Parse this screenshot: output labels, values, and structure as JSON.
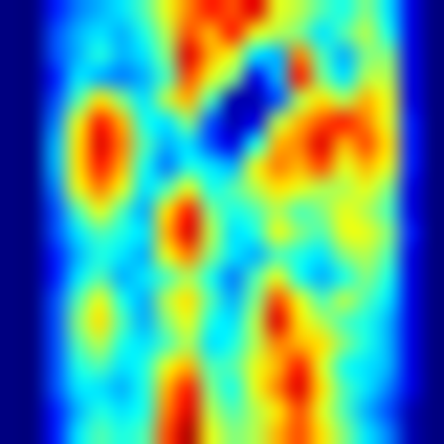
{
  "chart_data": {
    "type": "heatmap",
    "tick_labels": false,
    "color_range": [
      0,
      1
    ],
    "cells": [
      [
        0,
        0,
        0.15,
        0.25,
        0.3,
        0.35,
        0.45,
        0.6,
        0.75,
        0.85,
        0.8,
        0.9,
        0.6,
        0.55,
        0.45,
        0.4,
        0.5,
        0.35,
        0.1,
        0
      ],
      [
        0,
        0,
        0.2,
        0.3,
        0.35,
        0.3,
        0.4,
        0.55,
        0.8,
        0.7,
        0.85,
        0.6,
        0.55,
        0.5,
        0.35,
        0.45,
        0.55,
        0.4,
        0.1,
        0
      ],
      [
        0,
        0,
        0.2,
        0.3,
        0.4,
        0.3,
        0.35,
        0.5,
        0.9,
        0.7,
        0.6,
        0.35,
        0.3,
        0.75,
        0.45,
        0.3,
        0.5,
        0.5,
        0.1,
        0
      ],
      [
        0,
        0,
        0.15,
        0.35,
        0.3,
        0.25,
        0.3,
        0.45,
        0.8,
        0.6,
        0.5,
        0.1,
        0.3,
        0.85,
        0.5,
        0.35,
        0.55,
        0.55,
        0.1,
        0
      ],
      [
        0,
        0,
        0.2,
        0.45,
        0.65,
        0.5,
        0.35,
        0.55,
        0.7,
        0.45,
        0.05,
        0.05,
        0.2,
        0.55,
        0.65,
        0.55,
        0.7,
        0.6,
        0.1,
        0
      ],
      [
        0,
        0,
        0.25,
        0.6,
        0.85,
        0.7,
        0.4,
        0.35,
        0.5,
        0.2,
        0.05,
        0.1,
        0.55,
        0.7,
        0.8,
        0.85,
        0.75,
        0.6,
        0.15,
        0
      ],
      [
        0,
        0,
        0.3,
        0.65,
        0.9,
        0.75,
        0.45,
        0.3,
        0.35,
        0.2,
        0.1,
        0.4,
        0.7,
        0.75,
        0.9,
        0.7,
        0.8,
        0.65,
        0.15,
        0
      ],
      [
        0,
        0,
        0.3,
        0.65,
        0.85,
        0.7,
        0.4,
        0.25,
        0.4,
        0.35,
        0.3,
        0.6,
        0.75,
        0.7,
        0.8,
        0.6,
        0.7,
        0.6,
        0.15,
        0
      ],
      [
        0,
        0,
        0.25,
        0.6,
        0.75,
        0.6,
        0.35,
        0.45,
        0.6,
        0.4,
        0.45,
        0.55,
        0.65,
        0.6,
        0.55,
        0.55,
        0.6,
        0.5,
        0.1,
        0
      ],
      [
        0,
        0,
        0.2,
        0.45,
        0.6,
        0.45,
        0.3,
        0.65,
        0.85,
        0.5,
        0.4,
        0.45,
        0.55,
        0.45,
        0.5,
        0.6,
        0.55,
        0.45,
        0.1,
        0
      ],
      [
        0,
        0,
        0.2,
        0.35,
        0.45,
        0.4,
        0.35,
        0.7,
        0.9,
        0.55,
        0.35,
        0.4,
        0.6,
        0.5,
        0.45,
        0.6,
        0.6,
        0.5,
        0.15,
        0
      ],
      [
        0,
        0,
        0.15,
        0.3,
        0.4,
        0.35,
        0.3,
        0.6,
        0.75,
        0.5,
        0.35,
        0.3,
        0.45,
        0.4,
        0.35,
        0.5,
        0.55,
        0.45,
        0.1,
        0
      ],
      [
        0,
        0,
        0.15,
        0.35,
        0.45,
        0.3,
        0.35,
        0.45,
        0.55,
        0.4,
        0.25,
        0.45,
        0.6,
        0.4,
        0.3,
        0.4,
        0.5,
        0.4,
        0.1,
        0
      ],
      [
        0,
        0,
        0.2,
        0.45,
        0.6,
        0.4,
        0.3,
        0.55,
        0.65,
        0.45,
        0.3,
        0.5,
        0.8,
        0.6,
        0.45,
        0.55,
        0.45,
        0.35,
        0.1,
        0
      ],
      [
        0,
        0,
        0.2,
        0.5,
        0.65,
        0.45,
        0.3,
        0.5,
        0.6,
        0.4,
        0.35,
        0.55,
        0.9,
        0.65,
        0.55,
        0.45,
        0.4,
        0.3,
        0.1,
        0
      ],
      [
        0,
        0,
        0.2,
        0.45,
        0.55,
        0.4,
        0.35,
        0.45,
        0.55,
        0.35,
        0.4,
        0.55,
        0.75,
        0.7,
        0.65,
        0.5,
        0.4,
        0.3,
        0.1,
        0
      ],
      [
        0,
        0,
        0.2,
        0.4,
        0.45,
        0.35,
        0.4,
        0.6,
        0.7,
        0.45,
        0.45,
        0.6,
        0.7,
        0.85,
        0.6,
        0.4,
        0.35,
        0.3,
        0.1,
        0
      ],
      [
        0,
        0,
        0.2,
        0.35,
        0.35,
        0.3,
        0.4,
        0.7,
        0.85,
        0.5,
        0.4,
        0.6,
        0.75,
        0.9,
        0.65,
        0.45,
        0.35,
        0.25,
        0.1,
        0
      ],
      [
        0,
        0,
        0.15,
        0.3,
        0.4,
        0.35,
        0.4,
        0.75,
        0.9,
        0.55,
        0.45,
        0.55,
        0.65,
        0.8,
        0.6,
        0.45,
        0.3,
        0.2,
        0.05,
        0
      ],
      [
        0,
        0,
        0.15,
        0.35,
        0.45,
        0.4,
        0.45,
        0.8,
        0.95,
        0.6,
        0.5,
        0.55,
        0.7,
        0.8,
        0.65,
        0.5,
        0.35,
        0.25,
        0.05,
        0
      ]
    ]
  }
}
